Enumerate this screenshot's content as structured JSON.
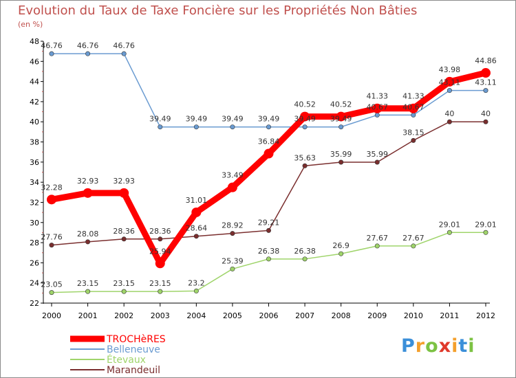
{
  "chart_data": {
    "type": "line",
    "title": "Evolution du Taux de Taxe Foncière sur les Propriétés Non Bâties",
    "subtitle": "(en %)",
    "xlabel": "",
    "ylabel": "",
    "categories": [
      "2000",
      "2001",
      "2002",
      "2003",
      "2004",
      "2005",
      "2006",
      "2007",
      "2008",
      "2009",
      "2010",
      "2011",
      "2012"
    ],
    "ylim": [
      22,
      48
    ],
    "yticks": [
      22,
      24,
      26,
      28,
      30,
      32,
      34,
      36,
      38,
      40,
      42,
      44,
      46,
      48
    ],
    "grid": false,
    "legend_position": "bottom-left",
    "series": [
      {
        "name": "TROCHèRES",
        "color": "#ff0000",
        "values": [
          32.28,
          32.93,
          32.93,
          25.94,
          31.01,
          33.49,
          36.84,
          40.52,
          40.52,
          41.33,
          41.33,
          43.98,
          44.86
        ],
        "labels": [
          "32.28",
          "32.93",
          "32.93",
          "25.94",
          "31.01",
          "33.49",
          "36.84",
          "40.52",
          "40.52",
          "41.33",
          "41.33",
          "43.98",
          "44.86"
        ]
      },
      {
        "name": "Belleneuve",
        "color": "#6a9bd1",
        "values": [
          46.76,
          46.76,
          46.76,
          39.49,
          39.49,
          39.49,
          39.49,
          39.49,
          39.49,
          40.67,
          40.67,
          43.11,
          43.11
        ],
        "labels": [
          "46.76",
          "46.76",
          "46.76",
          "39.49",
          "39.49",
          "39.49",
          "39.49",
          "39.49",
          "39.49",
          "40.67",
          "40.67",
          "43.11",
          "43.11"
        ]
      },
      {
        "name": "Étevaux",
        "color": "#9fd46a",
        "values": [
          23.05,
          23.15,
          23.15,
          23.15,
          23.2,
          25.39,
          26.38,
          26.38,
          26.9,
          27.67,
          27.67,
          29.01,
          29.01
        ],
        "labels": [
          "23.05",
          "23.15",
          "23.15",
          "23.15",
          "23.2",
          "25.39",
          "26.38",
          "26.38",
          "26.9",
          "27.67",
          "27.67",
          "29.01",
          "29.01"
        ]
      },
      {
        "name": "Marandeuil",
        "color": "#7a2e2e",
        "values": [
          27.76,
          28.08,
          28.36,
          28.36,
          28.64,
          28.92,
          29.21,
          35.63,
          35.99,
          35.99,
          38.15,
          40,
          40
        ],
        "labels": [
          "27.76",
          "28.08",
          "28.36",
          "28.36",
          "28.64",
          "28.92",
          "29.21",
          "35.63",
          "35.99",
          "35.99",
          "38.15",
          "40",
          "40"
        ]
      }
    ]
  },
  "logo": {
    "letters": [
      "P",
      "r",
      "o",
      "x",
      "i",
      "t",
      "i"
    ],
    "colors": [
      "#3b8fd9",
      "#f4a02d",
      "#7cc243",
      "#e0392b",
      "#f4a02d",
      "#3b8fd9",
      "#7cc243"
    ]
  }
}
